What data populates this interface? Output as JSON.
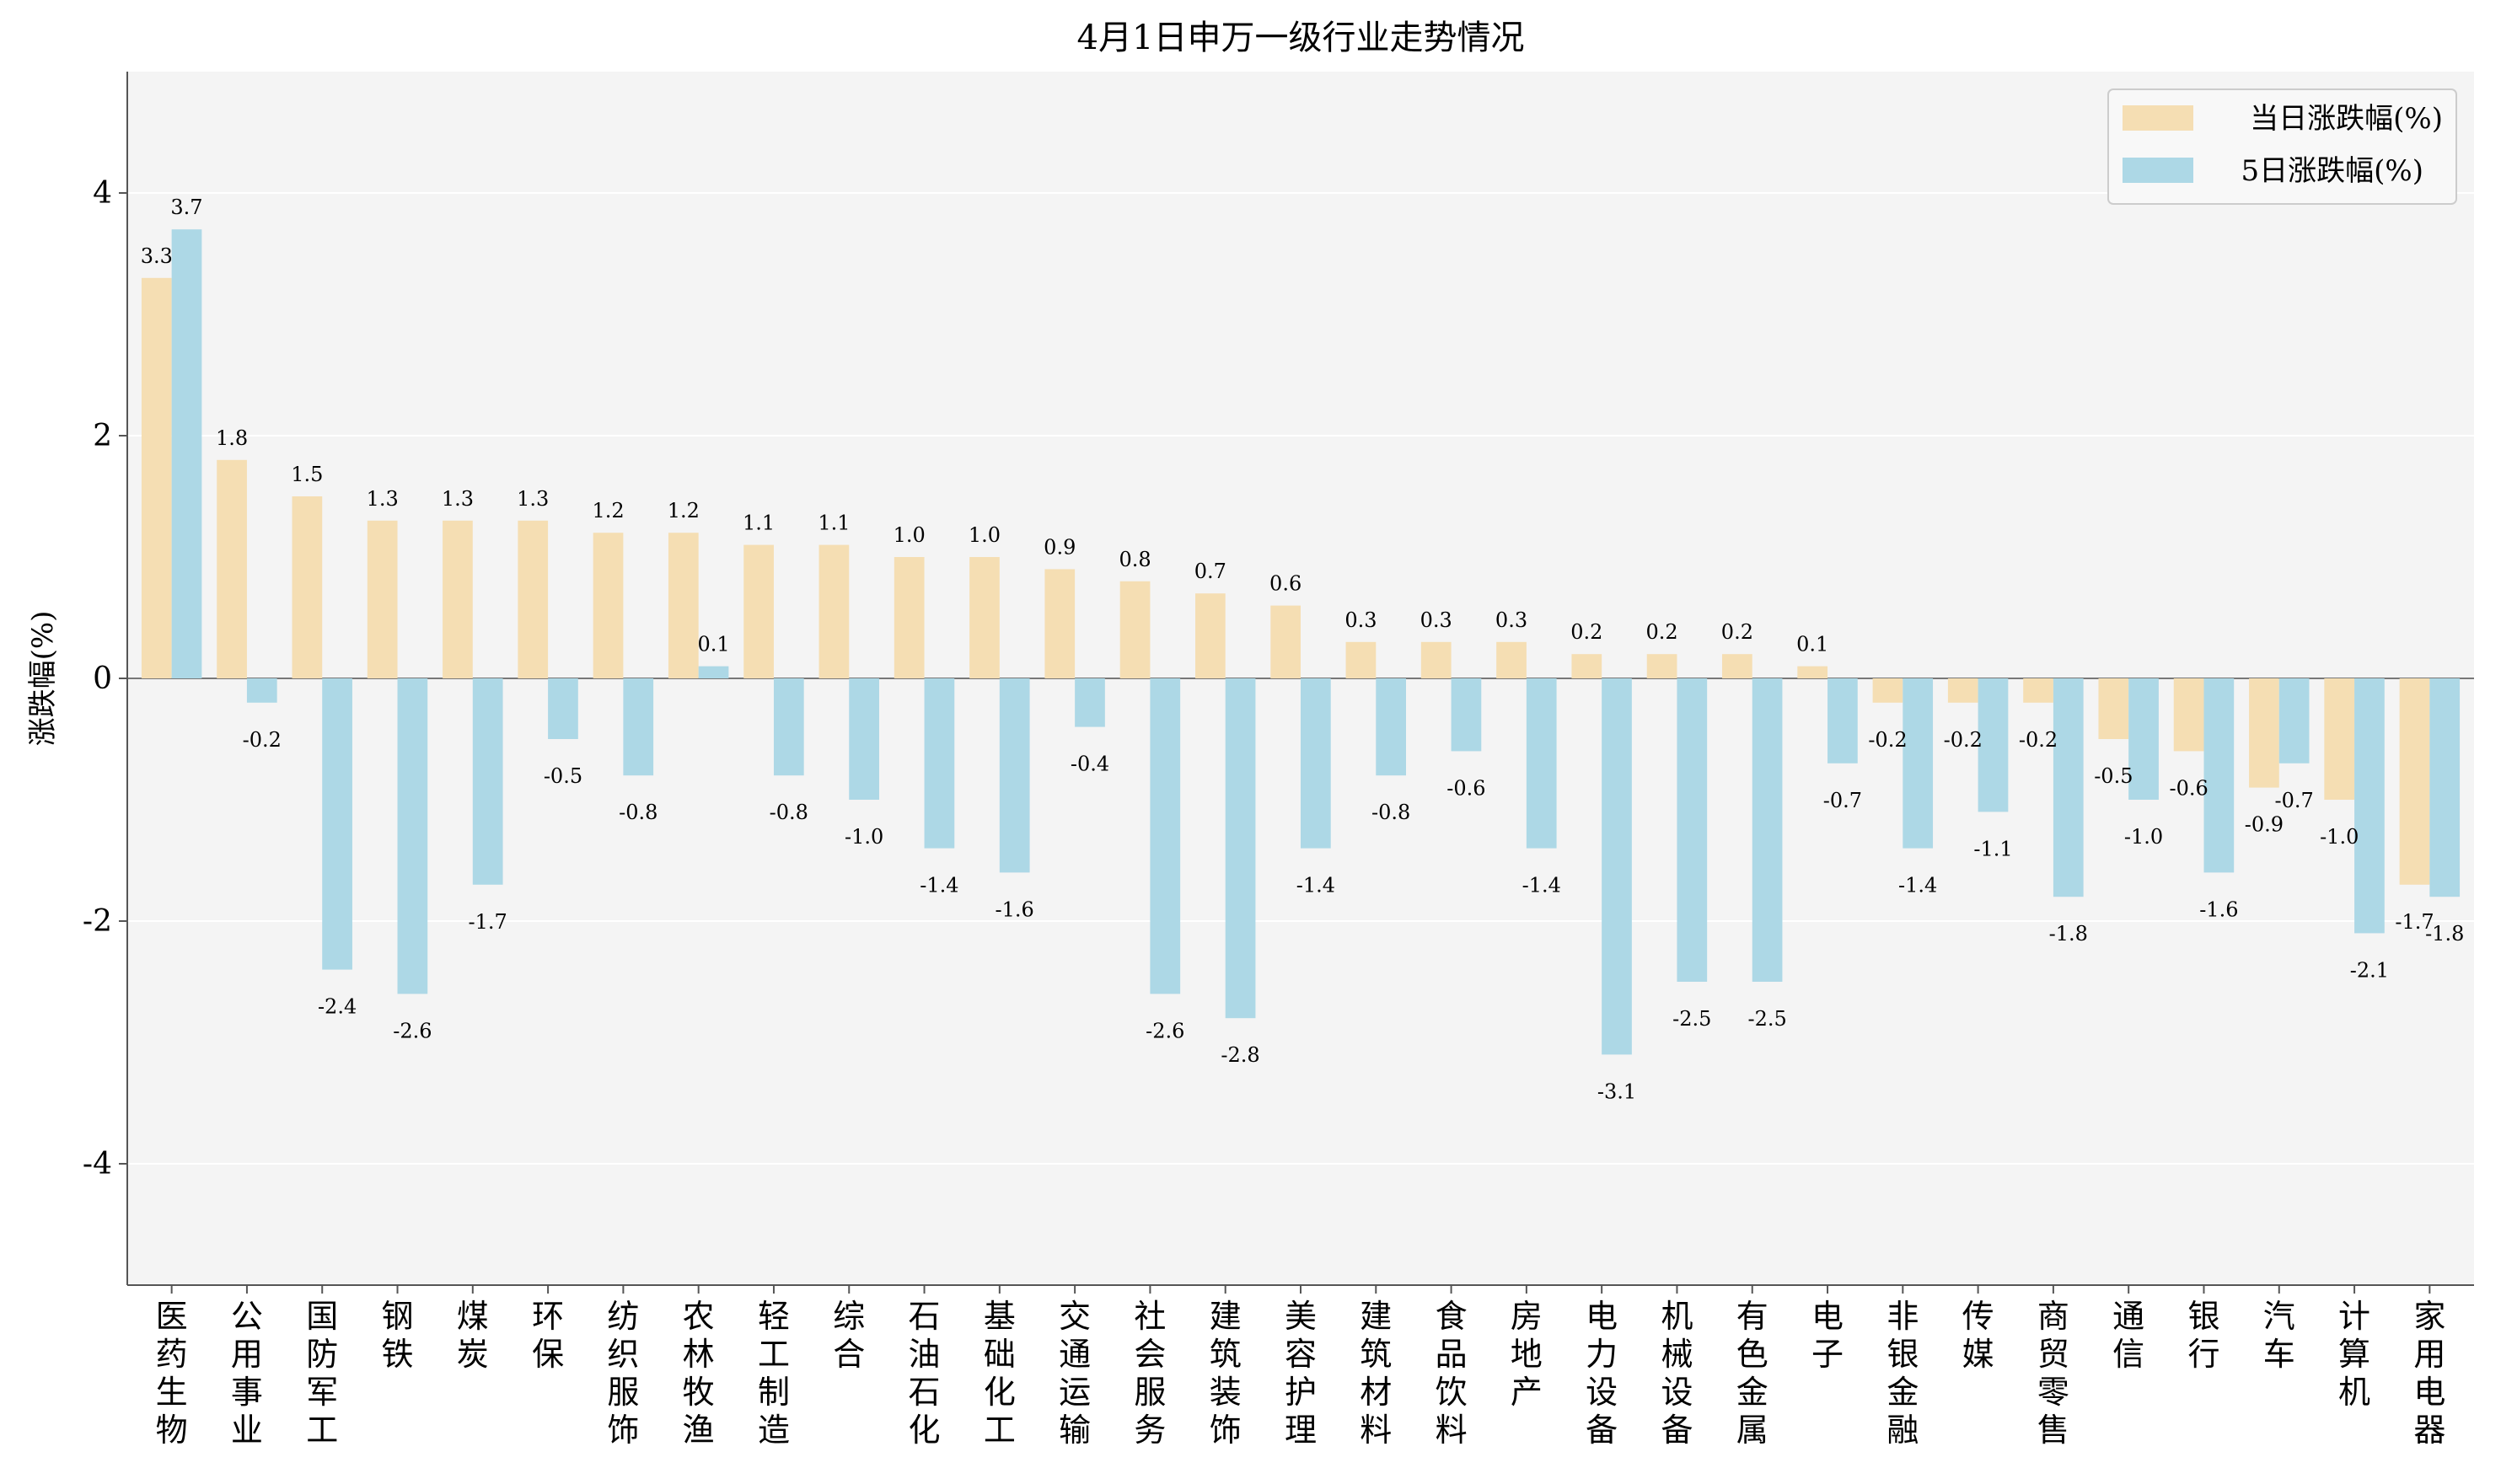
{
  "chart_data": {
    "type": "bar",
    "title": "4月1日申万一级行业走势情况",
    "xlabel": "",
    "ylabel": "涨跌幅(%)",
    "ylim": [
      -5,
      5
    ],
    "yticks": [
      -4,
      -2,
      0,
      2,
      4
    ],
    "ytick_labels": [
      "-4",
      "-2",
      "0",
      "2",
      "4"
    ],
    "grid": true,
    "legend_position": "top-right",
    "categories": [
      "医药生物",
      "公用事业",
      "国防军工",
      "钢铁",
      "煤炭",
      "环保",
      "纺织服饰",
      "农林牧渔",
      "轻工制造",
      "综合",
      "石油石化",
      "基础化工",
      "交通运输",
      "社会服务",
      "建筑装饰",
      "美容护理",
      "建筑材料",
      "食品饮料",
      "房地产",
      "电力设备",
      "机械设备",
      "有色金属",
      "电子",
      "非银金融",
      "传媒",
      "商贸零售",
      "通信",
      "银行",
      "汽车",
      "计算机",
      "家用电器"
    ],
    "series": [
      {
        "name": "当日涨跌幅(%)",
        "color": "#f5deb3",
        "values": [
          3.3,
          1.8,
          1.5,
          1.3,
          1.3,
          1.3,
          1.2,
          1.2,
          1.1,
          1.1,
          1.0,
          1.0,
          0.9,
          0.8,
          0.7,
          0.6,
          0.3,
          0.3,
          0.3,
          0.2,
          0.2,
          0.2,
          0.1,
          -0.2,
          -0.2,
          -0.2,
          -0.5,
          -0.6,
          -0.9,
          -1.0,
          -1.7
        ]
      },
      {
        "name": "5日涨跌幅(%)",
        "color": "#add8e6",
        "values": [
          3.7,
          -0.2,
          -2.4,
          -2.6,
          -1.7,
          -0.5,
          -0.8,
          0.1,
          -0.8,
          -1.0,
          -1.4,
          -1.6,
          -0.4,
          -2.6,
          -2.8,
          -1.4,
          -0.8,
          -0.6,
          -1.4,
          -3.1,
          -2.5,
          -2.5,
          -0.7,
          -1.4,
          -1.1,
          -1.8,
          -1.0,
          -1.6,
          -0.7,
          -2.1,
          -1.8
        ]
      }
    ]
  }
}
